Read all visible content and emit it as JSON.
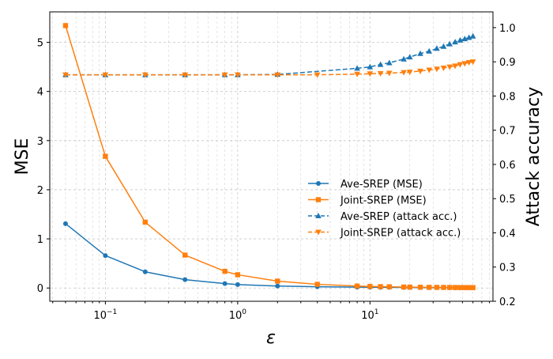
{
  "chart_data": {
    "type": "line",
    "xscale": "log",
    "xlabel": "ε",
    "ylabel": "MSE",
    "y2label": "Attack accuracy",
    "xlim": [
      0.038,
      85
    ],
    "ylim": [
      -0.27,
      5.62
    ],
    "y2lim": [
      0.2,
      1.046
    ],
    "grid": true,
    "legend_position": "center-right",
    "x_ticks": [
      {
        "value": 0.1,
        "base": "10",
        "exp": "−1"
      },
      {
        "value": 1,
        "base": "10",
        "exp": "0"
      },
      {
        "value": 10,
        "base": "10",
        "exp": "1"
      }
    ],
    "y_ticks": [
      {
        "value": 0,
        "label": "0"
      },
      {
        "value": 1,
        "label": "1"
      },
      {
        "value": 2,
        "label": "2"
      },
      {
        "value": 3,
        "label": "3"
      },
      {
        "value": 4,
        "label": "4"
      },
      {
        "value": 5,
        "label": "5"
      }
    ],
    "y2_ticks": [
      {
        "value": 0.2,
        "label": "0.2"
      },
      {
        "value": 0.3,
        "label": "0.3"
      },
      {
        "value": 0.4,
        "label": "0.4"
      },
      {
        "value": 0.5,
        "label": "0.5"
      },
      {
        "value": 0.6,
        "label": "0.6"
      },
      {
        "value": 0.7,
        "label": "0.7"
      },
      {
        "value": 0.8,
        "label": "0.8"
      },
      {
        "value": 0.9,
        "label": "0.9"
      },
      {
        "value": 1.0,
        "label": "1.0"
      }
    ],
    "series": [
      {
        "name": "Ave-SREP (MSE)",
        "axis": "left",
        "color": "#1f77b4",
        "linestyle": "solid",
        "marker": "circle",
        "x": [
          0.05,
          0.1,
          0.2,
          0.4,
          0.8,
          1,
          2,
          4,
          8,
          10,
          12,
          14,
          18,
          20,
          24,
          28,
          32,
          36,
          40,
          44,
          48,
          52,
          56,
          60
        ],
        "y": [
          1.31,
          0.66,
          0.33,
          0.17,
          0.09,
          0.07,
          0.04,
          0.025,
          0.018,
          0.015,
          0.014,
          0.013,
          0.011,
          0.01,
          0.009,
          0.008,
          0.007,
          0.007,
          0.006,
          0.006,
          0.005,
          0.005,
          0.005,
          0.005
        ]
      },
      {
        "name": "Joint-SREP (MSE)",
        "axis": "left",
        "color": "#ff7f0e",
        "linestyle": "solid",
        "marker": "square",
        "x": [
          0.05,
          0.1,
          0.2,
          0.4,
          0.8,
          1,
          2,
          4,
          8,
          10,
          12,
          14,
          18,
          20,
          24,
          28,
          32,
          36,
          40,
          44,
          48,
          52,
          56,
          60
        ],
        "y": [
          5.34,
          2.68,
          1.34,
          0.67,
          0.34,
          0.27,
          0.14,
          0.075,
          0.04,
          0.032,
          0.028,
          0.025,
          0.02,
          0.018,
          0.016,
          0.014,
          0.013,
          0.012,
          0.011,
          0.01,
          0.009,
          0.009,
          0.008,
          0.008
        ]
      },
      {
        "name": "Ave-SREP (attack acc.)",
        "axis": "right",
        "color": "#1f77b4",
        "linestyle": "dashed",
        "marker": "triangle-up",
        "x": [
          0.05,
          0.1,
          0.2,
          0.4,
          0.8,
          1,
          2,
          8,
          10,
          12,
          14,
          18,
          20,
          24,
          28,
          32,
          36,
          40,
          44,
          48,
          52,
          56,
          60
        ],
        "y": [
          0.862,
          0.862,
          0.862,
          0.862,
          0.862,
          0.862,
          0.863,
          0.881,
          0.885,
          0.892,
          0.897,
          0.908,
          0.914,
          0.924,
          0.931,
          0.939,
          0.945,
          0.952,
          0.958,
          0.963,
          0.967,
          0.971,
          0.975
        ]
      },
      {
        "name": "Joint-SREP (attack acc.)",
        "axis": "right",
        "color": "#ff7f0e",
        "linestyle": "dashed",
        "marker": "triangle-down",
        "x": [
          0.05,
          0.1,
          0.2,
          0.4,
          0.8,
          1,
          2,
          4,
          8,
          10,
          12,
          14,
          18,
          20,
          24,
          28,
          32,
          36,
          40,
          44,
          48,
          52,
          56,
          60
        ],
        "y": [
          0.862,
          0.862,
          0.862,
          0.862,
          0.862,
          0.862,
          0.862,
          0.862,
          0.864,
          0.865,
          0.866,
          0.867,
          0.869,
          0.87,
          0.873,
          0.876,
          0.879,
          0.882,
          0.885,
          0.888,
          0.892,
          0.895,
          0.898,
          0.9
        ]
      }
    ]
  }
}
